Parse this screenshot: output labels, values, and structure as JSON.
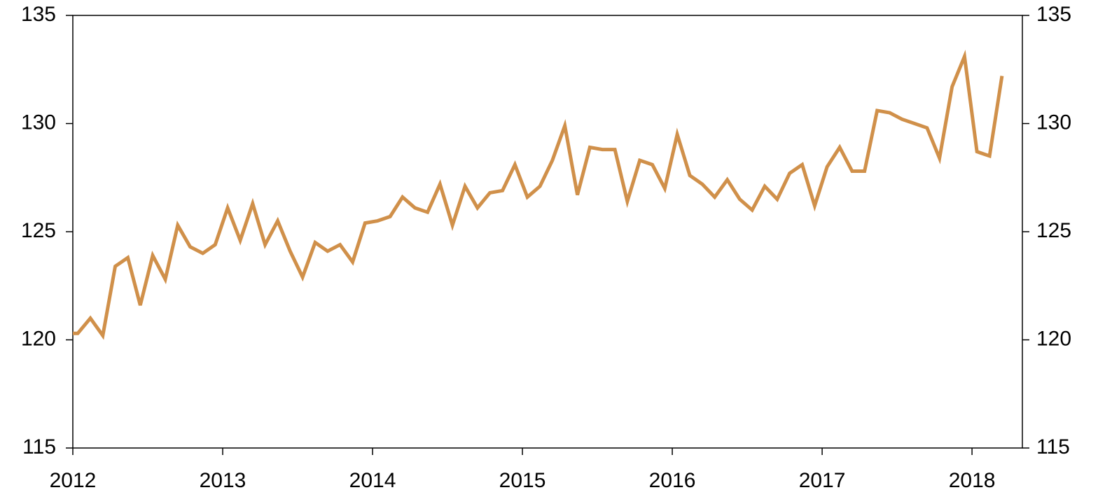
{
  "chart_data": {
    "type": "line",
    "x": [
      2012.0,
      2012.033,
      2012.117,
      2012.2,
      2012.283,
      2012.367,
      2012.45,
      2012.533,
      2012.617,
      2012.7,
      2012.783,
      2012.867,
      2012.95,
      2013.033,
      2013.117,
      2013.2,
      2013.283,
      2013.367,
      2013.45,
      2013.533,
      2013.617,
      2013.7,
      2013.783,
      2013.867,
      2013.95,
      2014.033,
      2014.117,
      2014.2,
      2014.283,
      2014.367,
      2014.45,
      2014.533,
      2014.617,
      2014.7,
      2014.783,
      2014.867,
      2014.95,
      2015.033,
      2015.117,
      2015.2,
      2015.283,
      2015.367,
      2015.45,
      2015.533,
      2015.617,
      2015.7,
      2015.783,
      2015.867,
      2015.95,
      2016.033,
      2016.117,
      2016.2,
      2016.283,
      2016.367,
      2016.45,
      2016.533,
      2016.617,
      2016.7,
      2016.783,
      2016.867,
      2016.95,
      2017.033,
      2017.117,
      2017.2,
      2017.283,
      2017.367,
      2017.45,
      2017.533,
      2017.617,
      2017.7,
      2017.783,
      2017.867,
      2017.95,
      2018.033,
      2018.117,
      2018.2
    ],
    "values": [
      120.3,
      120.3,
      121.0,
      120.2,
      123.4,
      123.8,
      121.6,
      123.9,
      122.8,
      125.3,
      124.3,
      124.0,
      124.4,
      126.1,
      124.6,
      126.3,
      124.4,
      125.5,
      124.1,
      122.9,
      124.5,
      124.1,
      124.4,
      123.6,
      125.4,
      125.5,
      125.7,
      126.6,
      126.1,
      125.9,
      127.2,
      125.3,
      127.1,
      126.1,
      126.8,
      126.9,
      128.1,
      126.6,
      127.1,
      128.3,
      129.9,
      126.7,
      128.9,
      128.8,
      128.8,
      126.4,
      128.3,
      128.1,
      127.0,
      129.5,
      127.6,
      127.2,
      126.6,
      127.4,
      126.5,
      126.0,
      127.1,
      126.5,
      127.7,
      128.1,
      126.2,
      128.0,
      128.9,
      127.8,
      127.8,
      130.6,
      130.5,
      130.2,
      130.0,
      129.8,
      128.4,
      131.7,
      133.1,
      128.7,
      128.5,
      132.2
    ],
    "color": "#d0904a",
    "xlim": [
      2012,
      2018.336
    ],
    "xticks": [
      2012,
      2013,
      2014,
      2015,
      2016,
      2017,
      2018
    ],
    "ylim": [
      115,
      135
    ],
    "yticks": [
      115,
      120,
      125,
      130,
      135
    ],
    "y2lim": [
      115,
      135
    ],
    "y2ticks": [
      115,
      120,
      125,
      130,
      135
    ]
  }
}
